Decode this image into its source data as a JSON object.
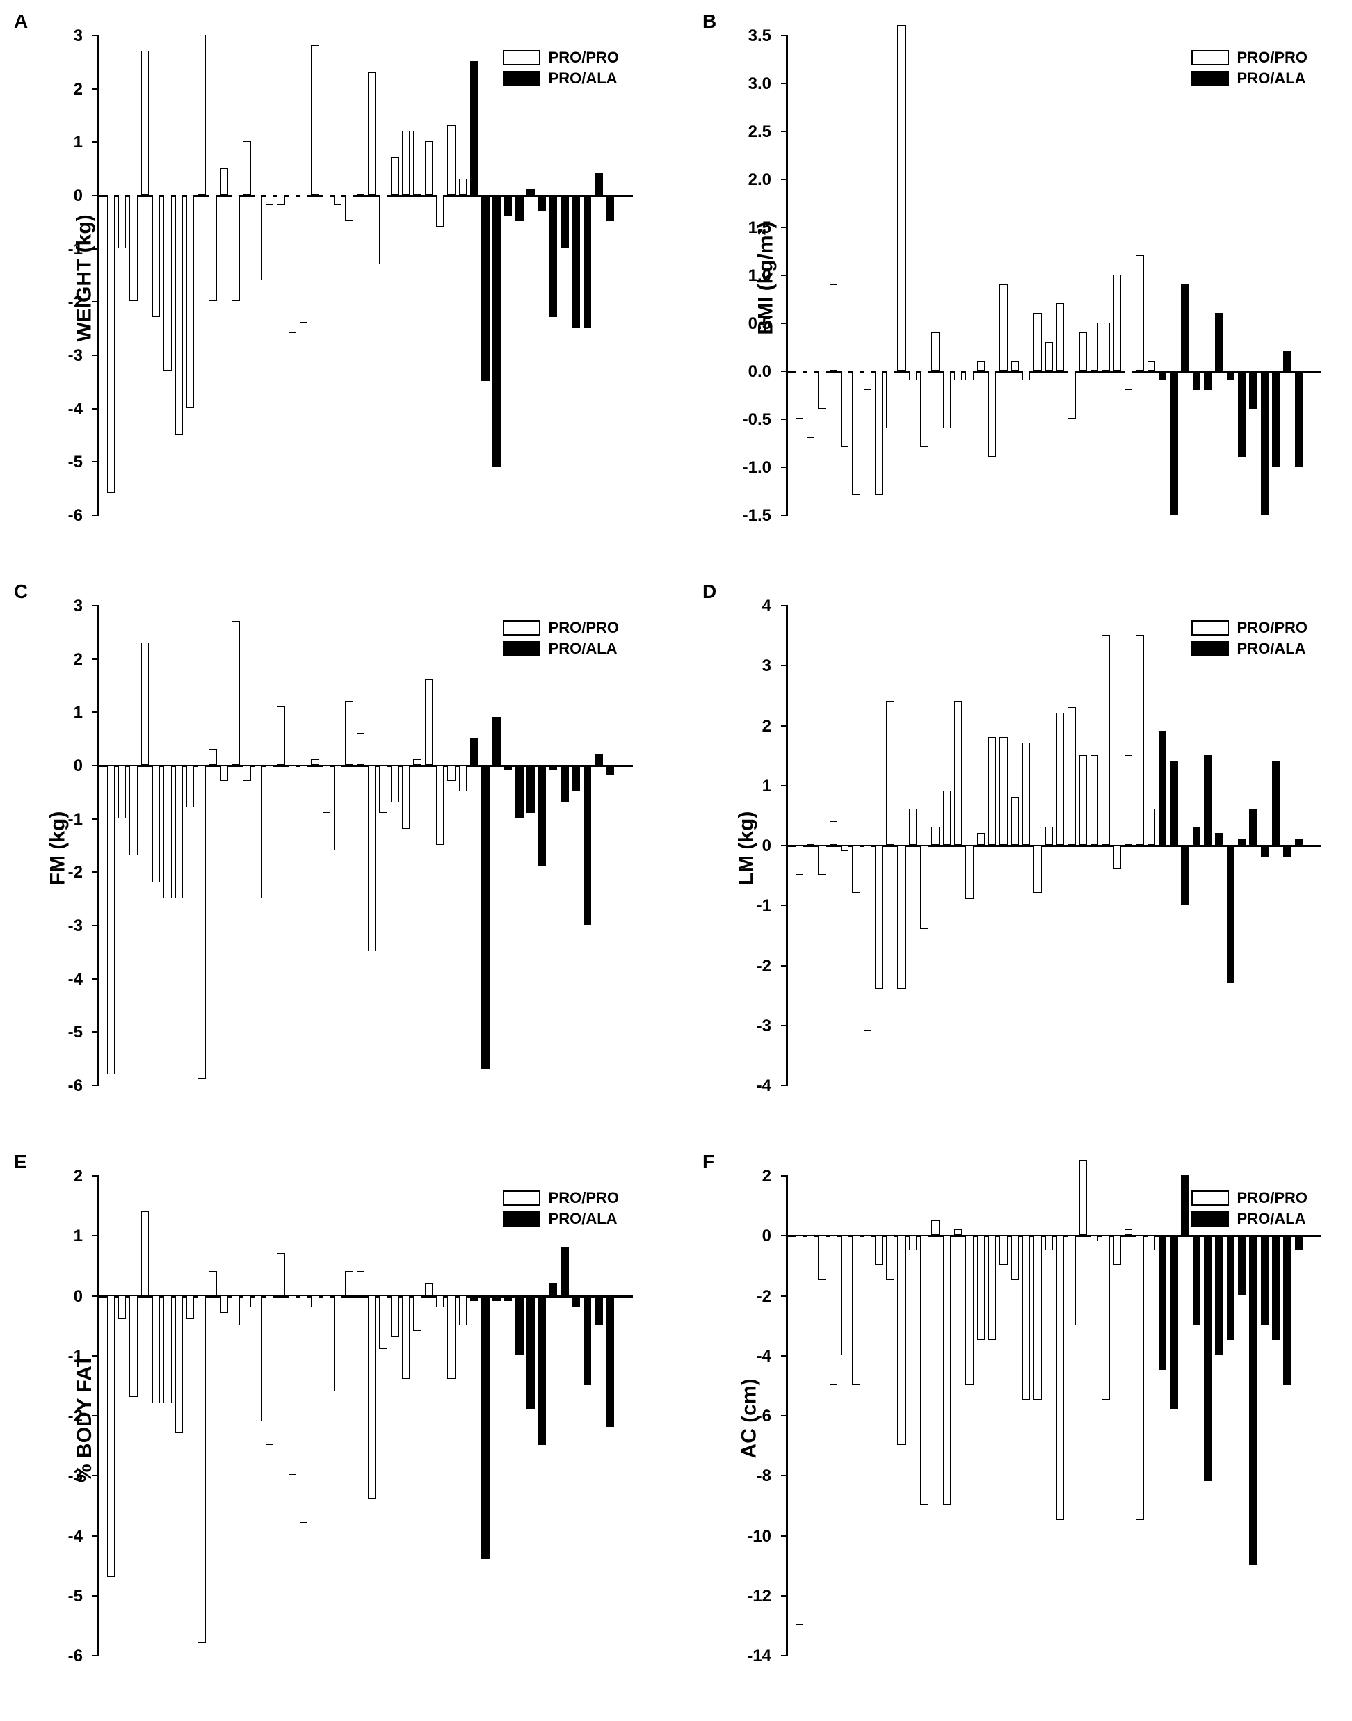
{
  "global": {
    "legend": [
      {
        "label": "PRO/PRO",
        "fill": "white"
      },
      {
        "label": "PRO/ALA",
        "fill": "black"
      }
    ],
    "colors": {
      "axis": "#000000",
      "background": "#ffffff",
      "bar_white": "#ffffff",
      "bar_black": "#000000"
    },
    "axis_line_width": 3,
    "bar_border_width": 1.5,
    "label_fontsize": 30,
    "tick_fontsize": 24,
    "panel_label_fontsize": 28,
    "legend_fontsize": 22,
    "font_family": "Arial"
  },
  "panels": [
    {
      "id": "A",
      "type": "bar",
      "ylabel": "WEIGHT (kg)",
      "ylim": [
        -6,
        3
      ],
      "ytick_step": 1,
      "series": [
        {
          "group": "PRO/PRO",
          "fill": "white",
          "values": [
            -5.6,
            -1.0,
            -2.0,
            2.7,
            -2.3,
            -3.3,
            -4.5,
            -4.0,
            3.0,
            -2.0,
            0.5,
            -2.0,
            1.0,
            -1.6,
            -0.2,
            -0.2,
            -2.6,
            -2.4,
            2.8,
            -0.1,
            -0.2,
            -0.5,
            0.9,
            2.3,
            -1.3,
            0.7,
            1.2,
            1.2,
            1.0,
            -0.6,
            1.3,
            0.3
          ]
        },
        {
          "group": "PRO/ALA",
          "fill": "black",
          "values": [
            2.5,
            -3.5,
            -5.1,
            -0.4,
            -0.5,
            0.1,
            -0.3,
            -2.3,
            -1.0,
            -2.5,
            -2.5,
            0.4,
            -0.5
          ]
        }
      ]
    },
    {
      "id": "B",
      "type": "bar",
      "ylabel": "BMI (kg/m²)",
      "ylim": [
        -1.5,
        3.5
      ],
      "ytick_step": 0.5,
      "series": [
        {
          "group": "PRO/PRO",
          "fill": "white",
          "values": [
            -0.5,
            -0.7,
            -0.4,
            0.9,
            -0.8,
            -1.3,
            -0.2,
            -1.3,
            -0.6,
            3.6,
            -0.1,
            -0.8,
            0.4,
            -0.6,
            -0.1,
            -0.1,
            0.1,
            -0.9,
            0.9,
            0.1,
            -0.1,
            0.6,
            0.3,
            0.7,
            -0.5,
            0.4,
            0.5,
            0.5,
            1.0,
            -0.2,
            1.2,
            0.1
          ]
        },
        {
          "group": "PRO/ALA",
          "fill": "black",
          "values": [
            -0.1,
            -1.5,
            0.9,
            -0.2,
            -0.2,
            0.6,
            -0.1,
            -0.9,
            -0.4,
            -1.5,
            -1.0,
            0.2,
            -1.0
          ]
        }
      ]
    },
    {
      "id": "C",
      "type": "bar",
      "ylabel": "FM (kg)",
      "ylim": [
        -6,
        3
      ],
      "ytick_step": 1,
      "series": [
        {
          "group": "PRO/PRO",
          "fill": "white",
          "values": [
            -5.8,
            -1.0,
            -1.7,
            2.3,
            -2.2,
            -2.5,
            -2.5,
            -0.8,
            -5.9,
            0.3,
            -0.3,
            2.7,
            -0.3,
            -2.5,
            -2.9,
            1.1,
            -3.5,
            -3.5,
            0.1,
            -0.9,
            -1.6,
            1.2,
            0.6,
            -3.5,
            -0.9,
            -0.7,
            -1.2,
            0.1,
            1.6,
            -1.5,
            -0.3,
            -0.5
          ]
        },
        {
          "group": "PRO/ALA",
          "fill": "black",
          "values": [
            0.5,
            -5.7,
            0.9,
            -0.1,
            -1.0,
            -0.9,
            -1.9,
            -0.1,
            -0.7,
            -0.5,
            -3.0,
            0.2,
            -0.2
          ]
        }
      ]
    },
    {
      "id": "D",
      "type": "bar",
      "ylabel": "LM (kg)",
      "ylim": [
        -4,
        4
      ],
      "ytick_step": 1,
      "series": [
        {
          "group": "PRO/PRO",
          "fill": "white",
          "values": [
            -0.5,
            0.9,
            -0.5,
            0.4,
            -0.1,
            -0.8,
            -3.1,
            -2.4,
            2.4,
            -2.4,
            0.6,
            -1.4,
            0.3,
            0.9,
            2.4,
            -0.9,
            0.2,
            1.8,
            1.8,
            0.8,
            1.7,
            -0.8,
            0.3,
            2.2,
            2.3,
            1.5,
            1.5,
            3.5,
            -0.4,
            1.5,
            3.5,
            0.6
          ]
        },
        {
          "group": "PRO/ALA",
          "fill": "black",
          "values": [
            1.9,
            1.4,
            -1.0,
            0.3,
            1.5,
            0.2,
            -2.3,
            0.1,
            0.6,
            -0.2,
            1.4,
            -0.2,
            0.1
          ]
        }
      ]
    },
    {
      "id": "E",
      "type": "bar",
      "ylabel": "% BODY FAT",
      "ylim": [
        -6,
        2
      ],
      "ytick_step": 1,
      "series": [
        {
          "group": "PRO/PRO",
          "fill": "white",
          "values": [
            -4.7,
            -0.4,
            -1.7,
            1.4,
            -1.8,
            -1.8,
            -2.3,
            -0.4,
            -5.8,
            0.4,
            -0.3,
            -0.5,
            -0.2,
            -2.1,
            -2.5,
            0.7,
            -3.0,
            -3.8,
            -0.2,
            -0.8,
            -1.6,
            0.4,
            0.4,
            -3.4,
            -0.9,
            -0.7,
            -1.4,
            -0.6,
            0.2,
            -0.2,
            -1.4,
            -0.5
          ]
        },
        {
          "group": "PRO/ALA",
          "fill": "black",
          "values": [
            -0.1,
            -4.4,
            -0.1,
            -0.1,
            -1.0,
            -1.9,
            -2.5,
            0.2,
            0.8,
            -0.2,
            -1.5,
            -0.5,
            -2.2
          ]
        }
      ]
    },
    {
      "id": "F",
      "type": "bar",
      "ylabel": "AC (cm)",
      "ylim": [
        -14,
        2
      ],
      "ytick_step": 2,
      "series": [
        {
          "group": "PRO/PRO",
          "fill": "white",
          "values": [
            -13.0,
            -0.5,
            -1.5,
            -5.0,
            -4.0,
            -5.0,
            -4.0,
            -1.0,
            -1.5,
            -7.0,
            -0.5,
            -9.0,
            0.5,
            -9.0,
            0.2,
            -5.0,
            -3.5,
            -3.5,
            -1.0,
            -1.5,
            -5.5,
            -5.5,
            -0.5,
            -9.5,
            -3.0,
            2.5,
            -0.2,
            -5.5,
            -1.0,
            0.2,
            -9.5,
            -0.5
          ]
        },
        {
          "group": "PRO/ALA",
          "fill": "black",
          "values": [
            -4.5,
            -5.8,
            2.0,
            -3.0,
            -8.2,
            -4.0,
            -3.5,
            -2.0,
            -11.0,
            -3.0,
            -3.5,
            -5.0,
            -0.5
          ]
        }
      ]
    }
  ]
}
